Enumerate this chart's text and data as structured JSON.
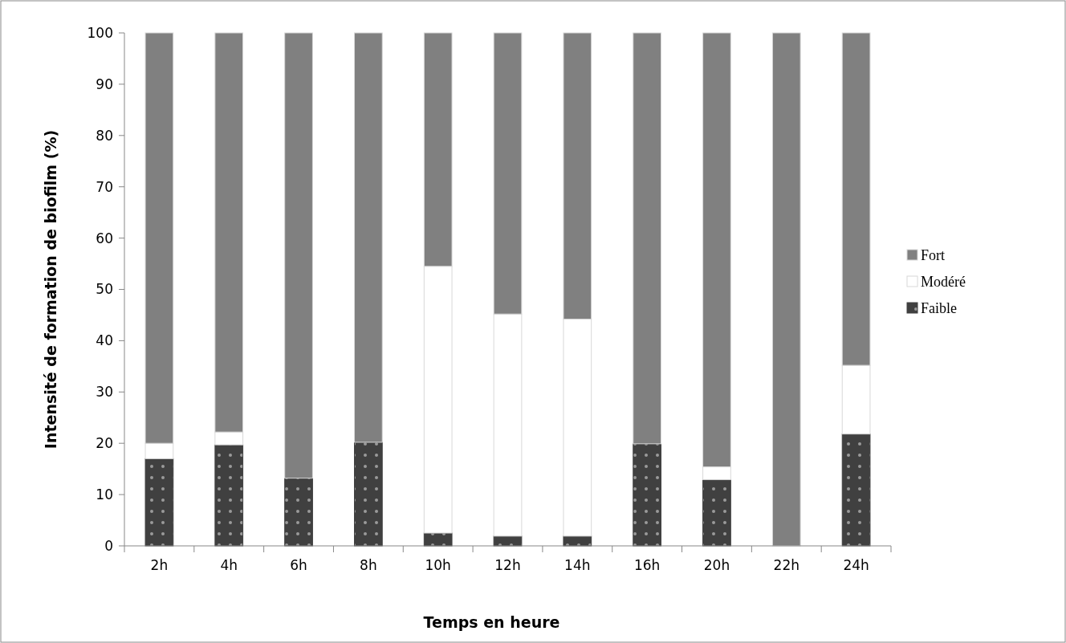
{
  "chart_data": {
    "type": "bar",
    "stacked": true,
    "xlabel": "Temps en heure",
    "ylabel": "Intensité de formation de biofilm (%)",
    "categories": [
      "2h",
      "4h",
      "6h",
      "8h",
      "10h",
      "12h",
      "14h",
      "16h",
      "20h",
      "22h",
      "24h"
    ],
    "series": [
      {
        "name": "Faible",
        "color": "#404040",
        "values": [
          17,
          19.7,
          13.2,
          20.2,
          2.5,
          1.9,
          1.9,
          19.9,
          12.9,
          0,
          21.8
        ]
      },
      {
        "name": "Modéré",
        "color": "#ffffff",
        "values": [
          3,
          2.5,
          0,
          0,
          52,
          43.3,
          42.3,
          0,
          2.5,
          0,
          13.4
        ]
      },
      {
        "name": "Fort",
        "color": "#808080",
        "values": [
          80,
          77.8,
          86.8,
          79.8,
          45.5,
          54.8,
          55.8,
          80.1,
          84.6,
          100,
          64.8
        ]
      }
    ],
    "ylim": [
      0,
      100
    ],
    "yticks": [
      0,
      10,
      20,
      30,
      40,
      50,
      60,
      70,
      80,
      90,
      100
    ],
    "legend": "right"
  }
}
